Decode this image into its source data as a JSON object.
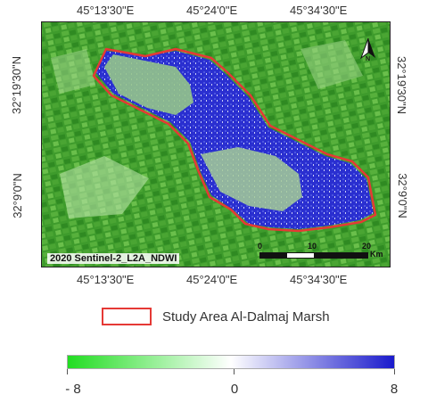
{
  "map": {
    "top_ticks": [
      "45°13'30\"E",
      "45°24'0\"E",
      "45°34'30\"E"
    ],
    "bottom_ticks": [
      "45°13'30\"E",
      "45°24'0\"E",
      "45°34'30\"E"
    ],
    "left_ticks": [
      "32°19'30\"N",
      "32°9'0\"N"
    ],
    "right_ticks": [
      "32°19'30\"N",
      "32°9'0\"N"
    ],
    "image_label": "2020 Sentinel-2_L2A_NDWI",
    "scale_bar": {
      "values": [
        "0",
        "10",
        "20"
      ],
      "unit": "Km"
    },
    "north_arrow": "north-arrow-icon",
    "colors": {
      "land": "#3e9b2c",
      "water": "#2a2fd0",
      "boundary": "#e53935"
    }
  },
  "legend": {
    "study_area_label": "Study Area Al-Dalmaj Marsh"
  },
  "colorbar": {
    "min_label": "- 8",
    "mid_label": "0",
    "max_label": "8",
    "min_value": -8,
    "mid_value": 0,
    "max_value": 8,
    "colors": [
      "#22dd22",
      "#ffffff",
      "#1a1acc"
    ]
  }
}
